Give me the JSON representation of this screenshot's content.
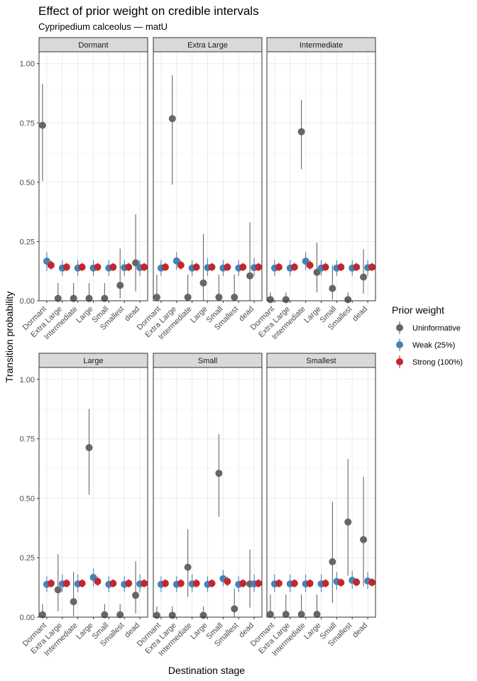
{
  "chart_data": {
    "type": "scatter",
    "title": "Effect of prior weight on credible intervals",
    "subtitle": "Cypripedium calceolus — matU",
    "xlabel": "Destination stage",
    "ylabel": "Transition probability",
    "ylim": [
      0,
      1.05
    ],
    "y_ticks": [
      0,
      0.25,
      0.5,
      0.75,
      1.0
    ],
    "y_tick_labels": [
      "0.00",
      "0.25",
      "0.50",
      "0.75",
      "1.00"
    ],
    "categories": [
      "Dormant",
      "Extra Large",
      "Intermediate",
      "Large",
      "Small",
      "Smallest",
      "dead"
    ],
    "grid": true,
    "layout": "facet grid, 2 rows x 3 columns",
    "legend": {
      "title": "Prior weight",
      "position": "right",
      "entries": [
        {
          "label": "Uninformative",
          "color": "#666666"
        },
        {
          "label": "Weak (25%)",
          "color": "#4682B4"
        },
        {
          "label": "Strong (100%)",
          "color": "#C1272D"
        }
      ]
    },
    "panels": [
      {
        "name": "Dormant",
        "series": [
          {
            "name": "Uninformative",
            "values": [
              0.74,
              0.01,
              0.01,
              0.01,
              0.01,
              0.065,
              0.16
            ],
            "lower": [
              0.505,
              0.0,
              0.0,
              0.0,
              0.0,
              0.01,
              0.04
            ],
            "upper": [
              0.915,
              0.075,
              0.075,
              0.075,
              0.075,
              0.22,
              0.365
            ]
          },
          {
            "name": "Weak (25%)",
            "values": [
              0.167,
              0.138,
              0.138,
              0.138,
              0.138,
              0.14,
              0.14
            ],
            "lower": [
              0.125,
              0.105,
              0.105,
              0.105,
              0.105,
              0.105,
              0.105
            ],
            "upper": [
              0.205,
              0.172,
              0.172,
              0.172,
              0.172,
              0.172,
              0.172
            ]
          },
          {
            "name": "Strong (100%)",
            "values": [
              0.15,
              0.142,
              0.142,
              0.142,
              0.142,
              0.142,
              0.142
            ],
            "lower": [
              0.13,
              0.125,
              0.125,
              0.125,
              0.125,
              0.125,
              0.125
            ],
            "upper": [
              0.17,
              0.16,
              0.16,
              0.16,
              0.16,
              0.16,
              0.16
            ]
          }
        ]
      },
      {
        "name": "Extra Large",
        "series": [
          {
            "name": "Uninformative",
            "values": [
              0.015,
              0.768,
              0.015,
              0.075,
              0.015,
              0.015,
              0.105
            ],
            "lower": [
              0.0,
              0.49,
              0.0,
              0.0,
              0.0,
              0.0,
              0.0
            ],
            "upper": [
              0.11,
              0.952,
              0.11,
              0.282,
              0.11,
              0.11,
              0.33
            ]
          },
          {
            "name": "Weak (25%)",
            "values": [
              0.138,
              0.168,
              0.138,
              0.14,
              0.138,
              0.138,
              0.14
            ],
            "lower": [
              0.105,
              0.13,
              0.105,
              0.105,
              0.105,
              0.105,
              0.105
            ],
            "upper": [
              0.172,
              0.205,
              0.172,
              0.18,
              0.172,
              0.172,
              0.18
            ]
          },
          {
            "name": "Strong (100%)",
            "values": [
              0.142,
              0.15,
              0.142,
              0.142,
              0.142,
              0.142,
              0.142
            ],
            "lower": [
              0.125,
              0.13,
              0.125,
              0.125,
              0.125,
              0.125,
              0.125
            ],
            "upper": [
              0.16,
              0.17,
              0.16,
              0.16,
              0.16,
              0.16,
              0.16
            ]
          }
        ]
      },
      {
        "name": "Intermediate",
        "series": [
          {
            "name": "Uninformative",
            "values": [
              0.005,
              0.005,
              0.713,
              0.12,
              0.052,
              0.005,
              0.1
            ],
            "lower": [
              0.0,
              0.0,
              0.555,
              0.035,
              0.005,
              0.0,
              0.03
            ],
            "upper": [
              0.035,
              0.035,
              0.848,
              0.245,
              0.15,
              0.035,
              0.218
            ]
          },
          {
            "name": "Weak (25%)",
            "values": [
              0.138,
              0.138,
              0.167,
              0.138,
              0.138,
              0.138,
              0.14
            ],
            "lower": [
              0.105,
              0.105,
              0.13,
              0.105,
              0.105,
              0.105,
              0.105
            ],
            "upper": [
              0.172,
              0.172,
              0.205,
              0.172,
              0.172,
              0.172,
              0.172
            ]
          },
          {
            "name": "Strong (100%)",
            "values": [
              0.142,
              0.142,
              0.15,
              0.142,
              0.142,
              0.142,
              0.142
            ],
            "lower": [
              0.125,
              0.125,
              0.13,
              0.125,
              0.125,
              0.125,
              0.125
            ],
            "upper": [
              0.16,
              0.16,
              0.17,
              0.16,
              0.16,
              0.16,
              0.16
            ]
          }
        ]
      },
      {
        "name": "Large",
        "series": [
          {
            "name": "Uninformative",
            "values": [
              0.01,
              0.115,
              0.065,
              0.713,
              0.01,
              0.01,
              0.092
            ],
            "lower": [
              0.0,
              0.025,
              0.005,
              0.515,
              0.0,
              0.0,
              0.015
            ],
            "upper": [
              0.055,
              0.265,
              0.19,
              0.875,
              0.055,
              0.055,
              0.235
            ]
          },
          {
            "name": "Weak (25%)",
            "values": [
              0.138,
              0.14,
              0.14,
              0.167,
              0.138,
              0.138,
              0.14
            ],
            "lower": [
              0.105,
              0.105,
              0.105,
              0.13,
              0.105,
              0.105,
              0.105
            ],
            "upper": [
              0.172,
              0.18,
              0.18,
              0.205,
              0.172,
              0.172,
              0.18
            ]
          },
          {
            "name": "Strong (100%)",
            "values": [
              0.142,
              0.142,
              0.142,
              0.15,
              0.142,
              0.142,
              0.142
            ],
            "lower": [
              0.125,
              0.125,
              0.125,
              0.13,
              0.125,
              0.125,
              0.125
            ],
            "upper": [
              0.16,
              0.16,
              0.16,
              0.17,
              0.16,
              0.16,
              0.16
            ]
          }
        ]
      },
      {
        "name": "Small",
        "series": [
          {
            "name": "Uninformative",
            "values": [
              0.008,
              0.008,
              0.21,
              0.008,
              0.605,
              0.035,
              0.14
            ],
            "lower": [
              0.0,
              0.0,
              0.085,
              0.0,
              0.422,
              0.0,
              0.04
            ],
            "upper": [
              0.045,
              0.045,
              0.37,
              0.045,
              0.77,
              0.12,
              0.285
            ]
          },
          {
            "name": "Weak (25%)",
            "values": [
              0.138,
              0.138,
              0.14,
              0.138,
              0.162,
              0.138,
              0.14
            ],
            "lower": [
              0.105,
              0.105,
              0.105,
              0.105,
              0.13,
              0.105,
              0.105
            ],
            "upper": [
              0.172,
              0.172,
              0.18,
              0.172,
              0.198,
              0.172,
              0.18
            ]
          },
          {
            "name": "Strong (100%)",
            "values": [
              0.142,
              0.142,
              0.142,
              0.142,
              0.15,
              0.142,
              0.142
            ],
            "lower": [
              0.125,
              0.125,
              0.125,
              0.125,
              0.13,
              0.125,
              0.125
            ],
            "upper": [
              0.16,
              0.16,
              0.16,
              0.16,
              0.17,
              0.16,
              0.16
            ]
          }
        ]
      },
      {
        "name": "Smallest",
        "series": [
          {
            "name": "Uninformative",
            "values": [
              0.012,
              0.012,
              0.012,
              0.012,
              0.233,
              0.4,
              0.326
            ],
            "lower": [
              0.0,
              0.0,
              0.0,
              0.0,
              0.06,
              0.175,
              0.13
            ],
            "upper": [
              0.095,
              0.095,
              0.095,
              0.095,
              0.485,
              0.665,
              0.59
            ]
          },
          {
            "name": "Weak (25%)",
            "values": [
              0.14,
              0.14,
              0.14,
              0.14,
              0.15,
              0.155,
              0.152
            ],
            "lower": [
              0.105,
              0.105,
              0.105,
              0.105,
              0.115,
              0.12,
              0.118
            ],
            "upper": [
              0.18,
              0.18,
              0.18,
              0.18,
              0.19,
              0.195,
              0.19
            ]
          },
          {
            "name": "Strong (100%)",
            "values": [
              0.142,
              0.142,
              0.142,
              0.142,
              0.145,
              0.147,
              0.146
            ],
            "lower": [
              0.125,
              0.125,
              0.125,
              0.125,
              0.128,
              0.13,
              0.129
            ],
            "upper": [
              0.16,
              0.16,
              0.16,
              0.16,
              0.163,
              0.165,
              0.164
            ]
          }
        ]
      }
    ]
  }
}
